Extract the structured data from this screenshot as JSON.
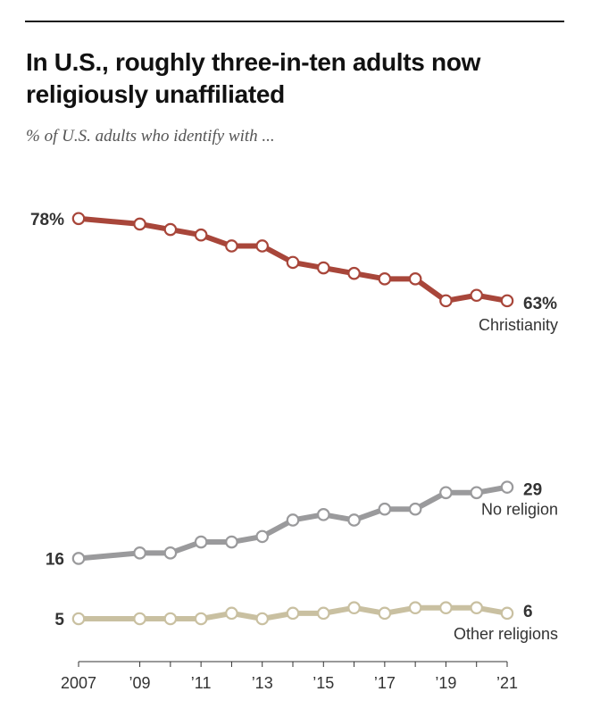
{
  "title": "In U.S., roughly three-in-ten adults now religiously unaffiliated",
  "subtitle": "% of U.S. adults who identify with ...",
  "chart_data": {
    "type": "line",
    "title": "In U.S., roughly three-in-ten adults now religiously unaffiliated",
    "subtitle": "% of U.S. adults who identify with ...",
    "x": [
      2007,
      2009,
      2010,
      2011,
      2012,
      2013,
      2014,
      2015,
      2016,
      2017,
      2018,
      2019,
      2020,
      2021
    ],
    "x_ticks": [
      {
        "year": 2007,
        "label": "2007"
      },
      {
        "year": 2009,
        "label": "’09"
      },
      {
        "year": 2011,
        "label": "’11"
      },
      {
        "year": 2013,
        "label": "’13"
      },
      {
        "year": 2015,
        "label": "’15"
      },
      {
        "year": 2017,
        "label": "’17"
      },
      {
        "year": 2019,
        "label": "’19"
      },
      {
        "year": 2021,
        "label": "’21"
      }
    ],
    "xlim": [
      2007,
      2021
    ],
    "ylim": [
      0,
      80
    ],
    "grid": false,
    "series": [
      {
        "name": "Christianity",
        "color": "#a8463a",
        "values": [
          78,
          77,
          76,
          75,
          73,
          73,
          70,
          69,
          68,
          67,
          67,
          63,
          64,
          63
        ],
        "start_label": "78%",
        "end_label": "63%"
      },
      {
        "name": "No religion",
        "color": "#9a9a9c",
        "values": [
          16,
          17,
          17,
          19,
          19,
          20,
          23,
          24,
          23,
          25,
          25,
          28,
          28,
          29
        ],
        "start_label": "16",
        "end_label": "29"
      },
      {
        "name": "Other religions",
        "color": "#c9c0a1",
        "values": [
          5,
          5,
          5,
          5,
          6,
          5,
          6,
          6,
          7,
          6,
          7,
          7,
          7,
          6
        ],
        "start_label": "5",
        "end_label": "6"
      }
    ]
  }
}
